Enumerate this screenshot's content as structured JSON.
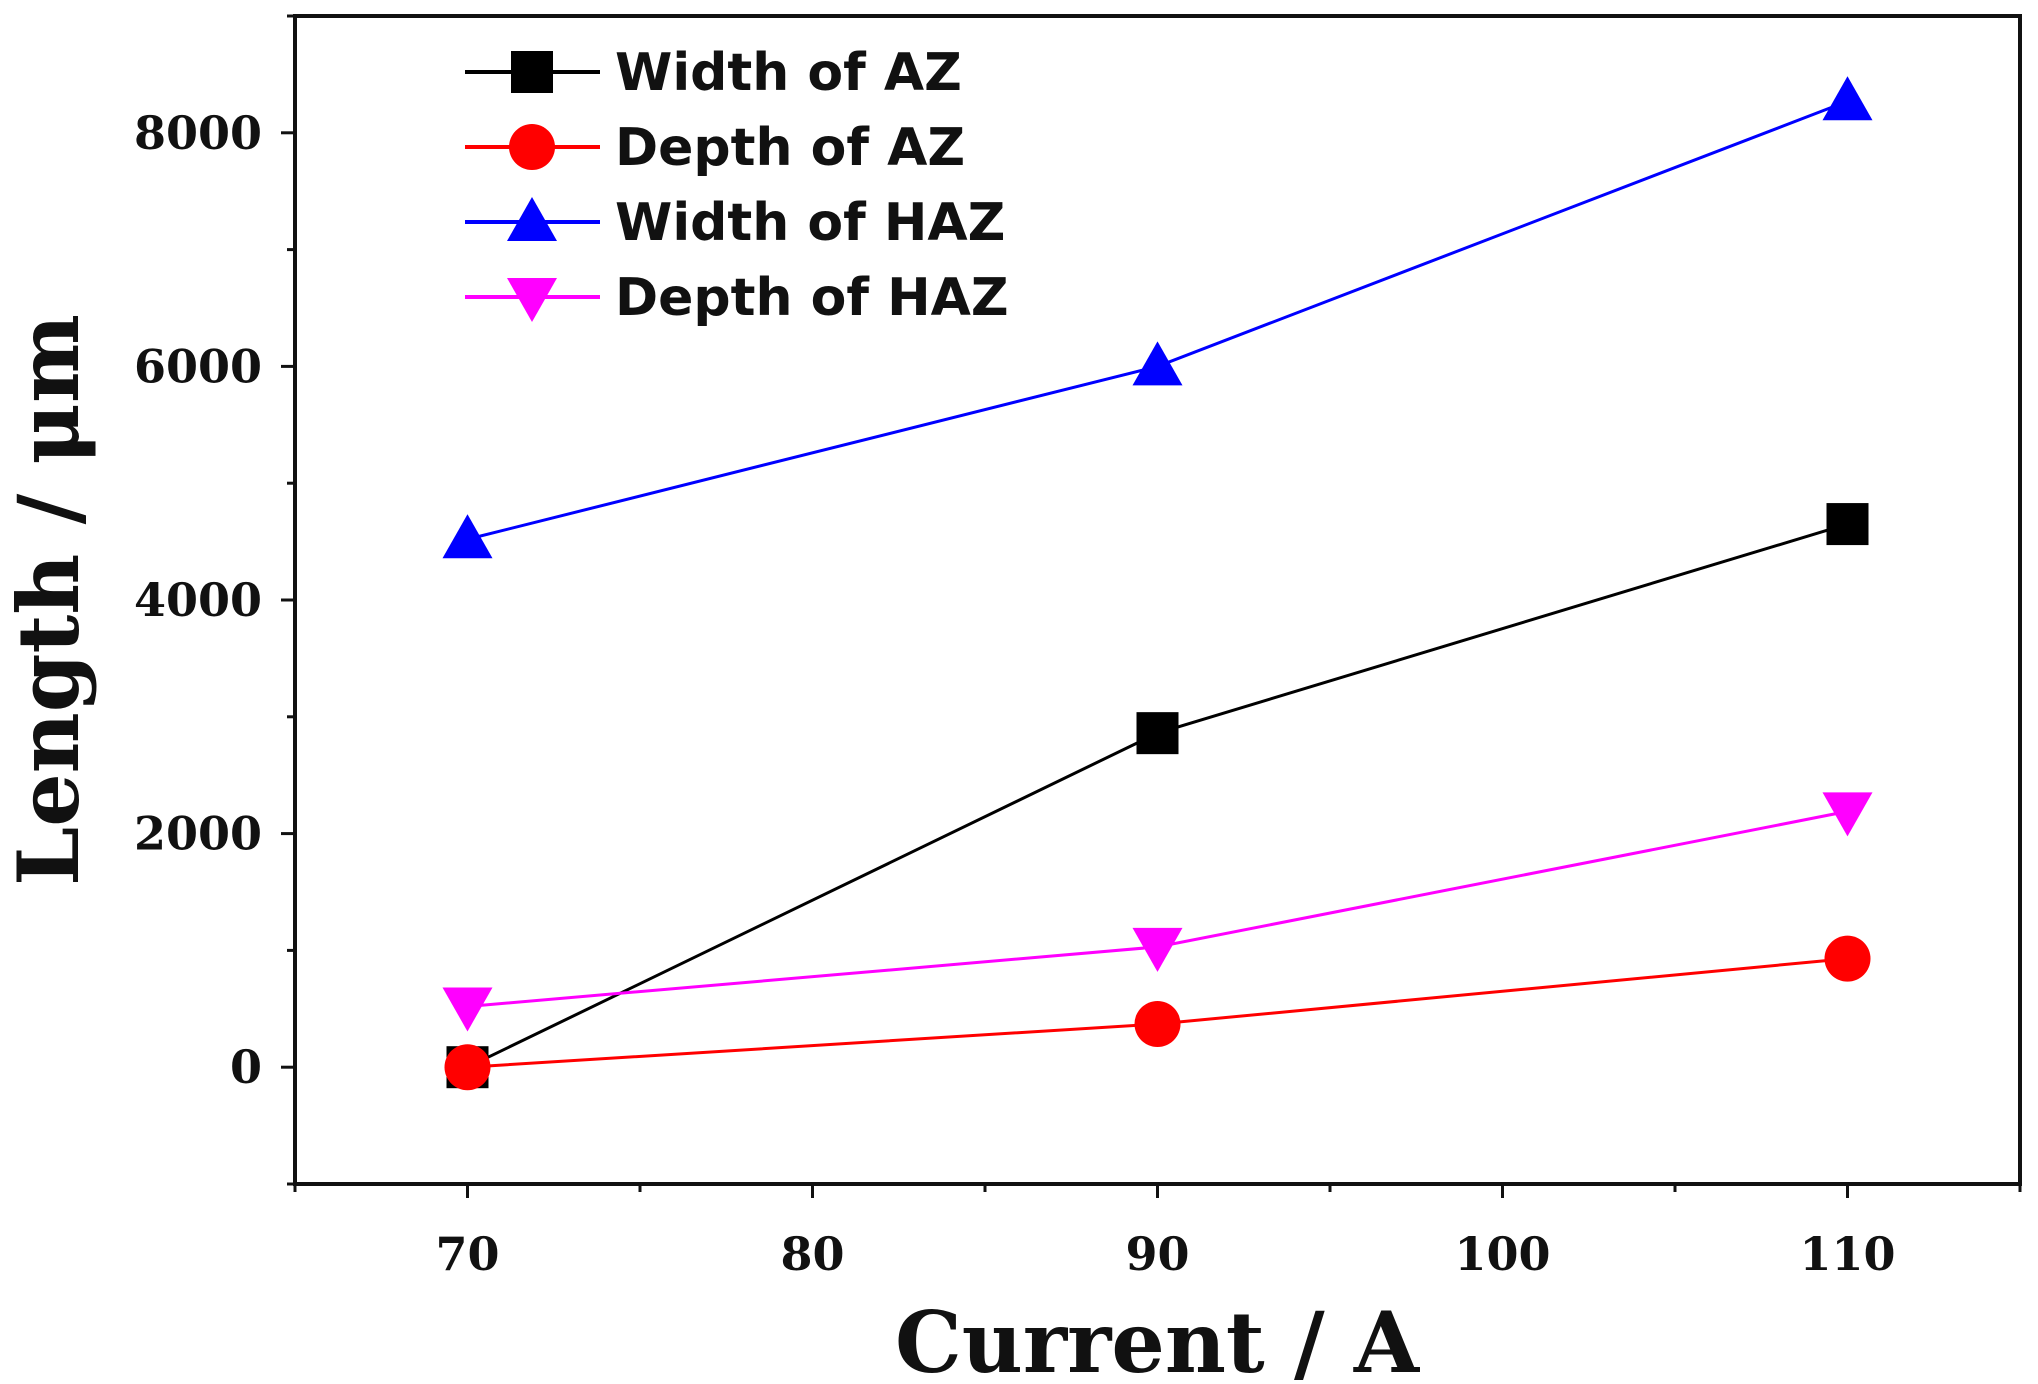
{
  "chart_data": {
    "type": "line",
    "title": "",
    "xlabel": "Current / A",
    "ylabel": "Length / μm",
    "xlim": [
      65,
      115
    ],
    "ylim": [
      -1000,
      9000
    ],
    "x_ticks": [
      70,
      80,
      90,
      100,
      110
    ],
    "x_tick_labels": [
      "70",
      "80",
      "90",
      "100",
      "110"
    ],
    "y_ticks": [
      0,
      2000,
      4000,
      6000,
      8000
    ],
    "y_tick_labels": [
      "0",
      "2000",
      "4000",
      "6000",
      "8000"
    ],
    "grid": false,
    "legend_position": "top-left",
    "series": [
      {
        "name": "Width of AZ",
        "color": "#000000",
        "marker": "square",
        "x": [
          70,
          90,
          110
        ],
        "y": [
          0,
          2860,
          4650
        ]
      },
      {
        "name": "Depth of AZ",
        "color": "#ff0000",
        "marker": "circle",
        "x": [
          70,
          90,
          110
        ],
        "y": [
          0,
          370,
          930
        ]
      },
      {
        "name": "Width of HAZ",
        "color": "#0000ff",
        "marker": "triangle-up",
        "x": [
          70,
          90,
          110
        ],
        "y": [
          4520,
          6000,
          8270
        ]
      },
      {
        "name": "Depth of HAZ",
        "color": "#ff00ff",
        "marker": "triangle-down",
        "x": [
          70,
          90,
          110
        ],
        "y": [
          520,
          1030,
          2190
        ]
      }
    ]
  }
}
